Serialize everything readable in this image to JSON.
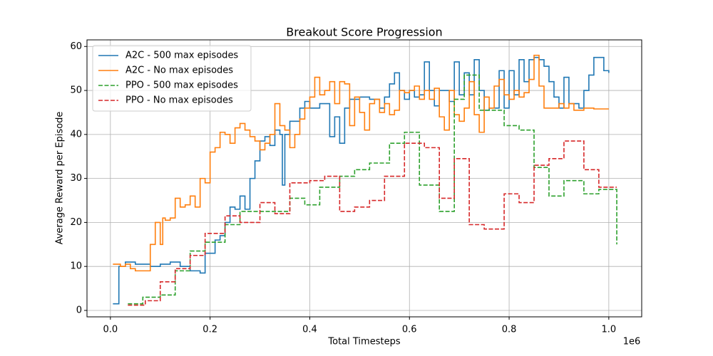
{
  "chart_data": {
    "type": "step-line",
    "title": "Breakout Score Progression",
    "x_label": "Total Timesteps",
    "y_label": "Average Reward per Episode",
    "x_offset_label": "1e6",
    "xlim": [
      -0.047,
      1.066
    ],
    "ylim": [
      -1.46,
      61.5
    ],
    "xticks": [
      {
        "value": 0,
        "label": "0.0"
      },
      0.2,
      0.4,
      0.6,
      0.8,
      {
        "value": 1,
        "label": "1.0"
      }
    ],
    "yticks": [
      0,
      10,
      20,
      30,
      40,
      50,
      60
    ],
    "grid": true,
    "legend": "upper left",
    "series": [
      {
        "name": "A2C - 500 max episodes",
        "color": "#1f77b4",
        "dash": "solid",
        "x": [
          0.005,
          0.017,
          0.03,
          0.05,
          0.08,
          0.1,
          0.12,
          0.14,
          0.16,
          0.18,
          0.19,
          0.21,
          0.22,
          0.23,
          0.24,
          0.25,
          0.26,
          0.27,
          0.28,
          0.29,
          0.3,
          0.31,
          0.32,
          0.33,
          0.34,
          0.345,
          0.35,
          0.36,
          0.38,
          0.39,
          0.4,
          0.42,
          0.44,
          0.45,
          0.46,
          0.47,
          0.48,
          0.5,
          0.52,
          0.54,
          0.55,
          0.56,
          0.57,
          0.58,
          0.59,
          0.6,
          0.61,
          0.62,
          0.63,
          0.64,
          0.65,
          0.66,
          0.68,
          0.69,
          0.7,
          0.71,
          0.72,
          0.73,
          0.74,
          0.75,
          0.76,
          0.78,
          0.79,
          0.8,
          0.81,
          0.82,
          0.83,
          0.84,
          0.85,
          0.86,
          0.87,
          0.88,
          0.89,
          0.9,
          0.91,
          0.92,
          0.94,
          0.95,
          0.96,
          0.97,
          0.99,
          1.0
        ],
        "values": [
          1.5,
          10,
          11,
          10.5,
          10,
          10.5,
          11,
          10,
          9,
          8.5,
          13,
          16,
          17,
          20,
          23.5,
          23,
          26,
          23,
          30,
          34,
          38.5,
          39.5,
          37.5,
          41,
          40,
          28.5,
          40,
          43,
          46,
          47.5,
          46,
          47,
          39.5,
          44,
          38,
          46,
          48,
          48.5,
          48,
          46,
          48.5,
          51.5,
          54,
          50,
          48,
          50,
          48.5,
          49,
          56.5,
          50,
          46.5,
          50,
          47.5,
          56.5,
          49,
          54,
          49,
          57,
          50,
          45.5,
          46,
          54.5,
          46,
          54.5,
          49,
          57,
          52,
          57,
          57.5,
          57,
          55.5,
          52,
          48.5,
          46,
          53,
          47,
          46,
          50,
          53.5,
          57.5,
          54.5,
          54
        ]
      },
      {
        "name": "A2C - No max episodes",
        "color": "#ff7f0e",
        "dash": "solid",
        "x": [
          0.005,
          0.02,
          0.03,
          0.04,
          0.05,
          0.07,
          0.08,
          0.09,
          0.1,
          0.105,
          0.11,
          0.12,
          0.13,
          0.14,
          0.15,
          0.16,
          0.17,
          0.18,
          0.19,
          0.2,
          0.21,
          0.22,
          0.23,
          0.24,
          0.25,
          0.26,
          0.27,
          0.28,
          0.29,
          0.3,
          0.31,
          0.32,
          0.33,
          0.34,
          0.35,
          0.36,
          0.37,
          0.38,
          0.39,
          0.4,
          0.41,
          0.42,
          0.43,
          0.44,
          0.45,
          0.46,
          0.47,
          0.48,
          0.49,
          0.5,
          0.51,
          0.52,
          0.53,
          0.54,
          0.55,
          0.56,
          0.57,
          0.58,
          0.59,
          0.6,
          0.61,
          0.62,
          0.63,
          0.64,
          0.65,
          0.66,
          0.67,
          0.68,
          0.69,
          0.7,
          0.71,
          0.72,
          0.73,
          0.74,
          0.75,
          0.76,
          0.77,
          0.78,
          0.79,
          0.8,
          0.81,
          0.82,
          0.83,
          0.84,
          0.85,
          0.86,
          0.87,
          0.89,
          0.9,
          0.91,
          0.92,
          0.93,
          0.95,
          0.97,
          1.0
        ],
        "values": [
          10.5,
          10,
          10.5,
          9.5,
          9,
          9,
          15,
          20,
          15,
          21,
          20.5,
          21,
          25.5,
          23.5,
          24,
          26,
          23.5,
          30,
          29,
          36,
          37,
          40.5,
          40,
          38,
          41.5,
          42.5,
          41,
          39.5,
          38.5,
          36.5,
          38,
          40,
          47,
          42,
          41,
          37,
          40,
          43.5,
          46,
          48.5,
          53,
          49,
          50,
          52,
          47,
          52,
          51.5,
          42,
          48.5,
          45,
          41,
          47,
          48,
          45,
          47,
          44.5,
          45.5,
          50,
          49.5,
          50,
          51,
          48,
          50,
          48,
          50.5,
          44,
          41,
          50,
          44.5,
          43,
          46,
          52,
          44.5,
          40.5,
          48.5,
          46,
          51,
          52.5,
          49,
          48,
          50,
          48.5,
          49.5,
          52.5,
          58,
          51,
          46,
          46,
          47,
          46,
          47,
          45.5,
          46,
          45.8,
          45.8
        ]
      },
      {
        "name": "PPO - 500 max episodes",
        "color": "#2ca02c",
        "dash": "dashed",
        "x": [
          0.035,
          0.065,
          0.1,
          0.13,
          0.16,
          0.19,
          0.23,
          0.26,
          0.33,
          0.36,
          0.39,
          0.42,
          0.46,
          0.49,
          0.52,
          0.56,
          0.59,
          0.62,
          0.66,
          0.69,
          0.71,
          0.74,
          0.79,
          0.82,
          0.85,
          0.88,
          0.91,
          0.95,
          0.98,
          1.016
        ],
        "values": [
          1.5,
          3,
          3.5,
          9,
          13.5,
          15.5,
          19.5,
          22.5,
          22.5,
          25.5,
          24,
          28,
          30.5,
          32,
          33.5,
          38,
          40.5,
          28.5,
          22.5,
          48,
          53.5,
          45.5,
          42,
          41,
          32.5,
          26,
          29.5,
          26.5,
          27.5,
          15
        ]
      },
      {
        "name": "PPO - No max episodes",
        "color": "#d62728",
        "dash": "dashed",
        "x": [
          0.035,
          0.07,
          0.1,
          0.13,
          0.16,
          0.19,
          0.23,
          0.26,
          0.3,
          0.33,
          0.36,
          0.4,
          0.43,
          0.46,
          0.49,
          0.52,
          0.55,
          0.59,
          0.63,
          0.66,
          0.69,
          0.72,
          0.75,
          0.79,
          0.82,
          0.85,
          0.88,
          0.91,
          0.95,
          0.98,
          1.016
        ],
        "values": [
          1.2,
          2.2,
          6.5,
          9.5,
          12.5,
          17.5,
          21.5,
          20,
          24.5,
          22,
          29,
          29.5,
          30.5,
          22.5,
          23.5,
          25,
          30.5,
          38,
          37,
          25.5,
          34.5,
          19.5,
          18.5,
          26.5,
          24.5,
          33,
          34.5,
          38.5,
          32,
          28,
          28
        ]
      }
    ]
  }
}
